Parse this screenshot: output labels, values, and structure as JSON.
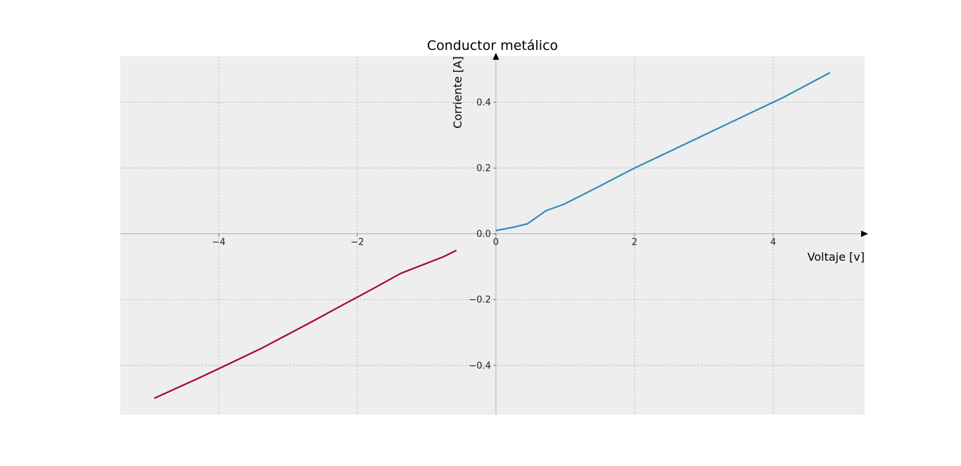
{
  "chart_data": {
    "type": "line",
    "title": "Conductor metálico",
    "xlabel": "Voltaje [v]",
    "ylabel": "Corriente [A]",
    "xlim": [
      -5.42,
      5.32
    ],
    "ylim": [
      -0.55,
      0.54
    ],
    "x_ticks": [
      -4,
      -2,
      0,
      2,
      4
    ],
    "x_tick_labels": [
      "−4",
      "−2",
      "0",
      "2",
      "4"
    ],
    "y_ticks": [
      -0.4,
      -0.2,
      0.0,
      0.2,
      0.4
    ],
    "y_tick_labels": [
      "−0.4",
      "−0.2",
      "0.0",
      "0.2",
      "0.4"
    ],
    "grid": true,
    "axes_through_origin": true,
    "colors": {
      "background": "#eeeeee",
      "positive_series": "#348abd",
      "negative_series": "#a60628",
      "axis": "#000000"
    },
    "series": [
      {
        "color": "#348abd",
        "x": [
          0.0,
          0.25,
          0.45,
          0.72,
          0.98,
          1.45,
          2.0,
          2.5,
          3.0,
          3.7,
          4.15,
          4.82
        ],
        "y": [
          0.01,
          0.02,
          0.03,
          0.07,
          0.09,
          0.14,
          0.2,
          0.25,
          0.3,
          0.37,
          0.415,
          0.49
        ]
      },
      {
        "color": "#a60628",
        "x": [
          -4.93,
          -4.3,
          -3.95,
          -3.4,
          -2.68,
          -2.2,
          -1.8,
          -1.37,
          -0.76,
          -0.57
        ],
        "y": [
          -0.5,
          -0.44,
          -0.405,
          -0.35,
          -0.27,
          -0.215,
          -0.17,
          -0.12,
          -0.07,
          -0.05
        ]
      }
    ]
  }
}
